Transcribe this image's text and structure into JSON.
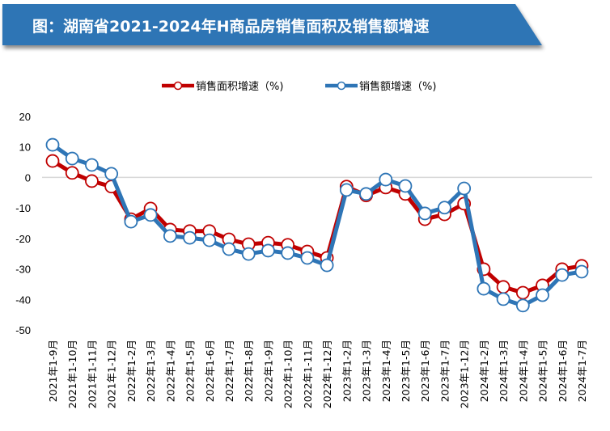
{
  "header": {
    "title": "图：湖南省2021-2024年H商品房销售面积及销售额增速"
  },
  "colors": {
    "banner": "#2E74B5",
    "area_series": "#C00000",
    "amount_series": "#2E75B6"
  },
  "chart_data": {
    "type": "line",
    "title": "图：湖南省2021-2024年H商品房销售面积及销售额增速",
    "xlabel": "",
    "ylabel": "",
    "ylim": [
      -50,
      20
    ],
    "yticks": [
      20,
      10,
      0,
      -10,
      -20,
      -30,
      -40,
      -50
    ],
    "grid": "zero line only",
    "legend": "top-center",
    "categories": [
      "2021年1-9月",
      "2021年1-10月",
      "2021年1-11月",
      "2021年1-12月",
      "2022年1-2月",
      "2022年1-3月",
      "2022年1-4月",
      "2022年1-5月",
      "2022年1-6月",
      "2022年1-7月",
      "2022年1-8月",
      "2022年1-9月",
      "2022年1-10月",
      "2022年1-11月",
      "2022年1-12月",
      "2023年1-2月",
      "2023年1-3月",
      "2023年1-4月",
      "2023年1-5月",
      "2023年1-6月",
      "2023年1-7月",
      "2023年1-12月",
      "2024年1-2月",
      "2024年1-3月",
      "2024年1-4月",
      "2024年1-5月",
      "2024年1-6月",
      "2024年1-7月"
    ],
    "series": [
      {
        "name": "销售面积增速（%)",
        "color": "#C00000",
        "values": [
          5.4,
          1.5,
          -1.2,
          -3.0,
          -13.7,
          -10.2,
          -17.1,
          -17.6,
          -17.6,
          -20.3,
          -21.9,
          -21.4,
          -22.1,
          -24.3,
          -26.4,
          -3.0,
          -5.9,
          -3.3,
          -5.4,
          -13.7,
          -12.1,
          -8.6,
          -30.1,
          -35.9,
          -37.8,
          -35.4,
          -30.1,
          -29.0
        ]
      },
      {
        "name": "销售额增速（%)",
        "color": "#2E75B6",
        "values": [
          10.7,
          6.2,
          4.1,
          1.2,
          -14.5,
          -12.3,
          -19.2,
          -19.8,
          -20.6,
          -23.5,
          -25.1,
          -24.0,
          -24.8,
          -26.4,
          -28.8,
          -4.1,
          -5.4,
          -0.7,
          -2.8,
          -11.8,
          -9.9,
          -3.6,
          -36.5,
          -39.9,
          -42.0,
          -38.6,
          -32.0,
          -30.9
        ]
      }
    ]
  }
}
